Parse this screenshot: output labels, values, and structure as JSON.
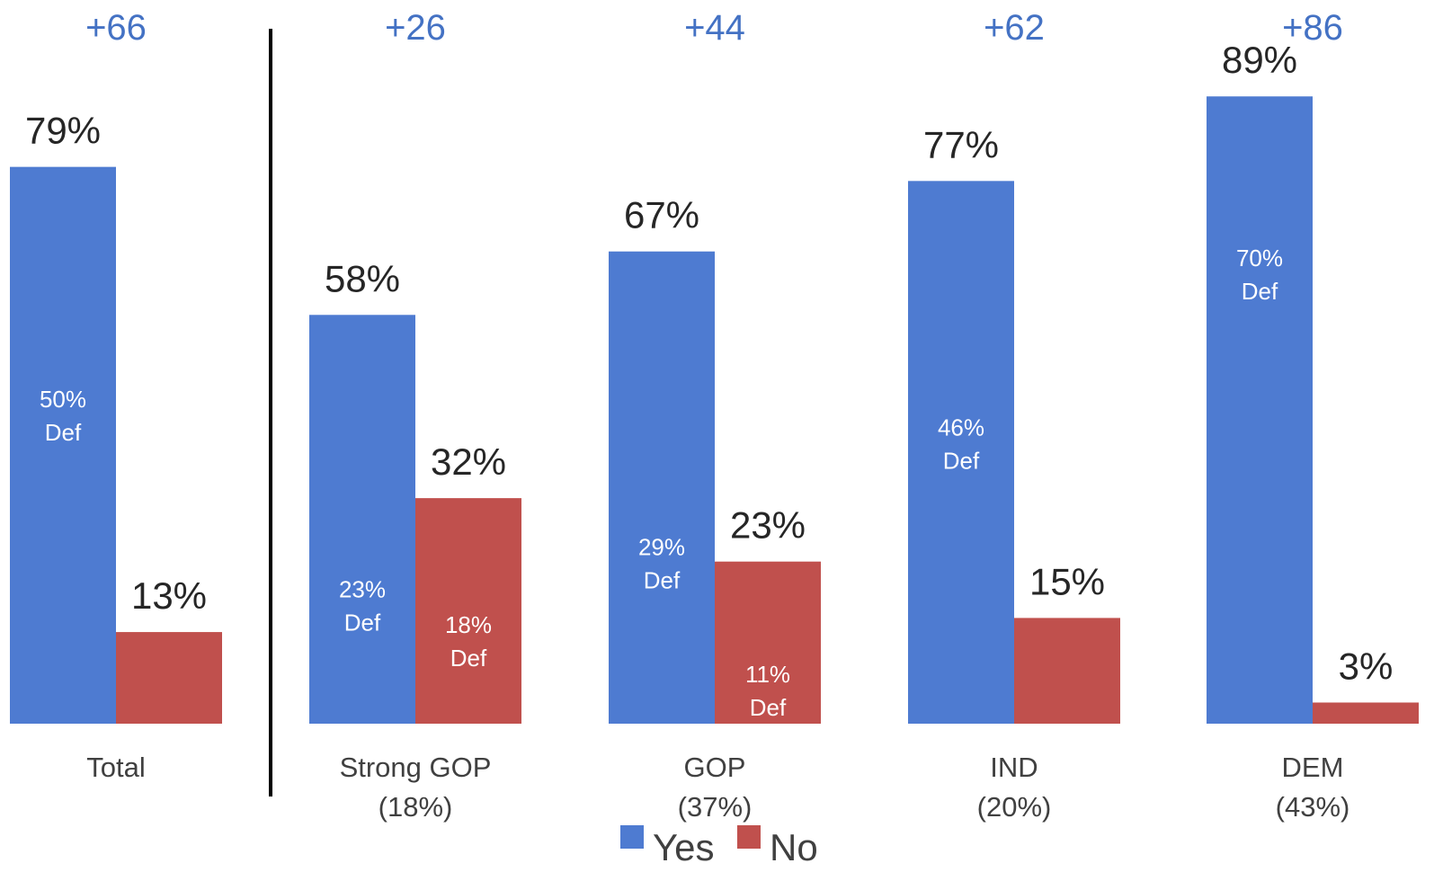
{
  "chart_data": {
    "type": "bar",
    "categories": [
      {
        "line1": "Total",
        "line2": ""
      },
      {
        "line1": "Strong GOP",
        "line2": "(18%)"
      },
      {
        "line1": "GOP",
        "line2": "(37%)"
      },
      {
        "line1": "IND",
        "line2": "(20%)"
      },
      {
        "line1": "DEM",
        "line2": "(43%)"
      }
    ],
    "margins": [
      "+66",
      "+26",
      "+44",
      "+62",
      "+86"
    ],
    "series": [
      {
        "name": "Yes",
        "color": "#4e7bd1",
        "values": [
          79,
          58,
          67,
          77,
          89
        ],
        "labels": [
          "79%",
          "58%",
          "67%",
          "77%",
          "89%"
        ],
        "def_values": [
          50,
          23,
          29,
          46,
          70
        ],
        "def_labels": [
          {
            "line1": "50%",
            "line2": "Def"
          },
          {
            "line1": "23%",
            "line2": "Def"
          },
          {
            "line1": "29%",
            "line2": "Def"
          },
          {
            "line1": "46%",
            "line2": "Def"
          },
          {
            "line1": "70%",
            "line2": "Def"
          }
        ]
      },
      {
        "name": "No",
        "color": "#c0504d",
        "values": [
          13,
          32,
          23,
          15,
          3
        ],
        "labels": [
          "13%",
          "32%",
          "23%",
          "15%",
          "3%"
        ],
        "def_values": [
          null,
          18,
          11,
          null,
          null
        ],
        "def_labels": [
          null,
          {
            "line1": "18%",
            "line2": "Def"
          },
          {
            "line1": "11%",
            "line2": "Def"
          },
          null,
          null
        ]
      }
    ],
    "ylim": [
      0,
      100
    ],
    "legend_position": "bottom",
    "grid": false,
    "margin_color": "#4472c4",
    "divider_after_category": 0
  }
}
